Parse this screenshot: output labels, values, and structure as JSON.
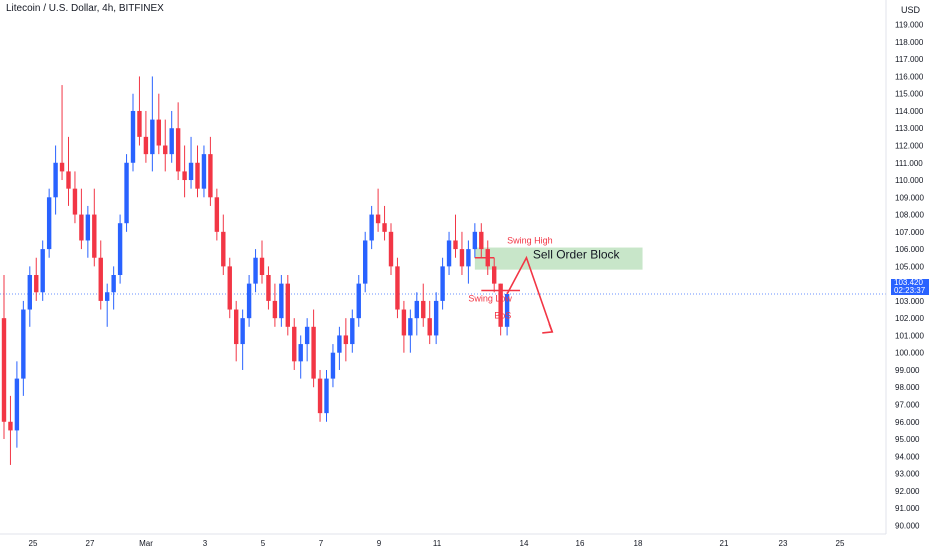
{
  "title": "Litecoin / U.S. Dollar, 4h, BITFINEX",
  "axis": {
    "currency": "USD",
    "current_price": "103.420",
    "countdown": "02:23:37"
  },
  "colors": {
    "up": "#2962ff",
    "down": "#f23645",
    "order_block": "#c8e6c9",
    "price_line": "#2962ff"
  },
  "annotations": {
    "swing_high": "Swing High",
    "swing_low": "Swing Low",
    "bos": "BoS",
    "order_block": "Sell Order Block"
  },
  "chart_data": {
    "type": "candlestick",
    "x_ticks": [
      "25",
      "27",
      "Mar",
      "3",
      "5",
      "7",
      "9",
      "11",
      "14",
      "16",
      "18",
      "21",
      "23",
      "25"
    ],
    "y_ticks": [
      "119.000",
      "118.000",
      "117.000",
      "116.000",
      "115.000",
      "114.000",
      "113.000",
      "112.000",
      "111.000",
      "110.000",
      "109.000",
      "108.000",
      "107.000",
      "106.000",
      "105.000",
      "104.000",
      "103.000",
      "102.000",
      "101.000",
      "100.000",
      "99.000",
      "98.000",
      "97.000",
      "96.000",
      "95.000",
      "94.000",
      "93.000",
      "92.000",
      "91.000",
      "90.000"
    ],
    "ylim": [
      89.5,
      119.5
    ],
    "candles": [
      [
        102.0,
        104.5,
        95.0,
        96.0
      ],
      [
        96.0,
        97.5,
        93.5,
        95.5
      ],
      [
        95.5,
        99.5,
        94.5,
        98.5
      ],
      [
        98.5,
        103.0,
        97.5,
        102.5
      ],
      [
        102.5,
        105.0,
        101.5,
        104.5
      ],
      [
        104.5,
        105.5,
        103.0,
        103.5
      ],
      [
        103.5,
        106.5,
        103.0,
        106.0
      ],
      [
        106.0,
        109.5,
        105.5,
        109.0
      ],
      [
        109.0,
        112.0,
        108.0,
        111.0
      ],
      [
        111.0,
        115.5,
        110.0,
        110.5
      ],
      [
        110.5,
        112.5,
        108.5,
        109.5
      ],
      [
        109.5,
        110.5,
        107.5,
        108.0
      ],
      [
        108.0,
        109.5,
        106.0,
        106.5
      ],
      [
        106.5,
        108.5,
        105.5,
        108.0
      ],
      [
        108.0,
        109.5,
        105.0,
        105.5
      ],
      [
        105.5,
        106.5,
        102.5,
        103.0
      ],
      [
        103.0,
        104.0,
        101.5,
        103.5
      ],
      [
        103.5,
        105.0,
        102.5,
        104.5
      ],
      [
        104.5,
        108.0,
        104.0,
        107.5
      ],
      [
        107.5,
        111.5,
        107.0,
        111.0
      ],
      [
        111.0,
        115.0,
        110.5,
        114.0
      ],
      [
        114.0,
        116.0,
        112.0,
        112.5
      ],
      [
        112.5,
        114.0,
        111.0,
        111.5
      ],
      [
        111.5,
        116.0,
        110.5,
        113.5
      ],
      [
        113.5,
        115.0,
        111.5,
        112.0
      ],
      [
        112.0,
        113.5,
        110.5,
        111.5
      ],
      [
        111.5,
        114.0,
        111.0,
        113.0
      ],
      [
        113.0,
        114.5,
        110.0,
        110.5
      ],
      [
        110.5,
        112.0,
        109.0,
        110.0
      ],
      [
        110.0,
        112.5,
        109.5,
        111.0
      ],
      [
        111.0,
        112.0,
        109.0,
        109.5
      ],
      [
        109.5,
        112.0,
        109.0,
        111.5
      ],
      [
        111.5,
        112.5,
        108.5,
        109.0
      ],
      [
        109.0,
        109.5,
        106.5,
        107.0
      ],
      [
        107.0,
        108.0,
        104.5,
        105.0
      ],
      [
        105.0,
        105.5,
        102.0,
        102.5
      ],
      [
        102.5,
        103.0,
        99.5,
        100.5
      ],
      [
        100.5,
        102.5,
        99.0,
        102.0
      ],
      [
        102.0,
        104.5,
        101.5,
        104.0
      ],
      [
        104.0,
        106.0,
        103.5,
        105.5
      ],
      [
        105.5,
        106.5,
        104.0,
        104.5
      ],
      [
        104.5,
        105.0,
        102.5,
        103.0
      ],
      [
        103.0,
        104.0,
        101.5,
        102.0
      ],
      [
        102.0,
        104.5,
        101.5,
        104.0
      ],
      [
        104.0,
        104.5,
        101.0,
        101.5
      ],
      [
        101.5,
        102.0,
        99.0,
        99.5
      ],
      [
        99.5,
        101.0,
        98.5,
        100.5
      ],
      [
        100.5,
        102.0,
        99.5,
        101.5
      ],
      [
        101.5,
        102.5,
        98.0,
        98.5
      ],
      [
        98.5,
        99.0,
        96.0,
        96.5
      ],
      [
        96.5,
        99.0,
        96.0,
        98.5
      ],
      [
        98.5,
        100.5,
        98.0,
        100.0
      ],
      [
        100.0,
        101.5,
        99.0,
        101.0
      ],
      [
        101.0,
        102.0,
        99.5,
        100.5
      ],
      [
        100.5,
        102.5,
        100.0,
        102.0
      ],
      [
        102.0,
        104.5,
        101.5,
        104.0
      ],
      [
        104.0,
        107.0,
        103.5,
        106.5
      ],
      [
        106.5,
        108.5,
        106.0,
        108.0
      ],
      [
        108.0,
        109.5,
        107.0,
        107.5
      ],
      [
        107.5,
        108.5,
        106.5,
        107.0
      ],
      [
        107.0,
        107.5,
        104.5,
        105.0
      ],
      [
        105.0,
        105.5,
        102.0,
        102.5
      ],
      [
        102.5,
        103.0,
        100.0,
        101.0
      ],
      [
        101.0,
        102.5,
        100.0,
        102.0
      ],
      [
        102.0,
        103.5,
        101.0,
        103.0
      ],
      [
        103.0,
        104.0,
        101.5,
        102.0
      ],
      [
        102.0,
        103.0,
        100.5,
        101.0
      ],
      [
        101.0,
        103.5,
        100.5,
        103.0
      ],
      [
        103.0,
        105.5,
        102.5,
        105.0
      ],
      [
        105.0,
        107.0,
        104.5,
        106.5
      ],
      [
        106.5,
        108.0,
        105.5,
        106.0
      ],
      [
        106.0,
        107.0,
        104.5,
        105.0
      ],
      [
        105.0,
        106.5,
        104.0,
        106.0
      ],
      [
        106.0,
        107.5,
        105.5,
        107.0
      ],
      [
        107.0,
        107.5,
        105.5,
        106.0
      ],
      [
        106.0,
        106.5,
        104.5,
        105.0
      ],
      [
        105.0,
        105.5,
        103.5,
        104.0
      ],
      [
        104.0,
        104.0,
        101.0,
        101.5
      ],
      [
        101.5,
        103.5,
        101.0,
        103.4
      ]
    ],
    "ob_zone": {
      "y_top": 105.8,
      "y_bottom": 105.1,
      "x_start_index": 73,
      "x_end_index": 99
    },
    "swing_high_level": 105.5,
    "swing_low_level": 103.6,
    "projection": [
      [
        78,
        103.4
      ],
      [
        81,
        105.5
      ],
      [
        85,
        101.2
      ]
    ]
  }
}
